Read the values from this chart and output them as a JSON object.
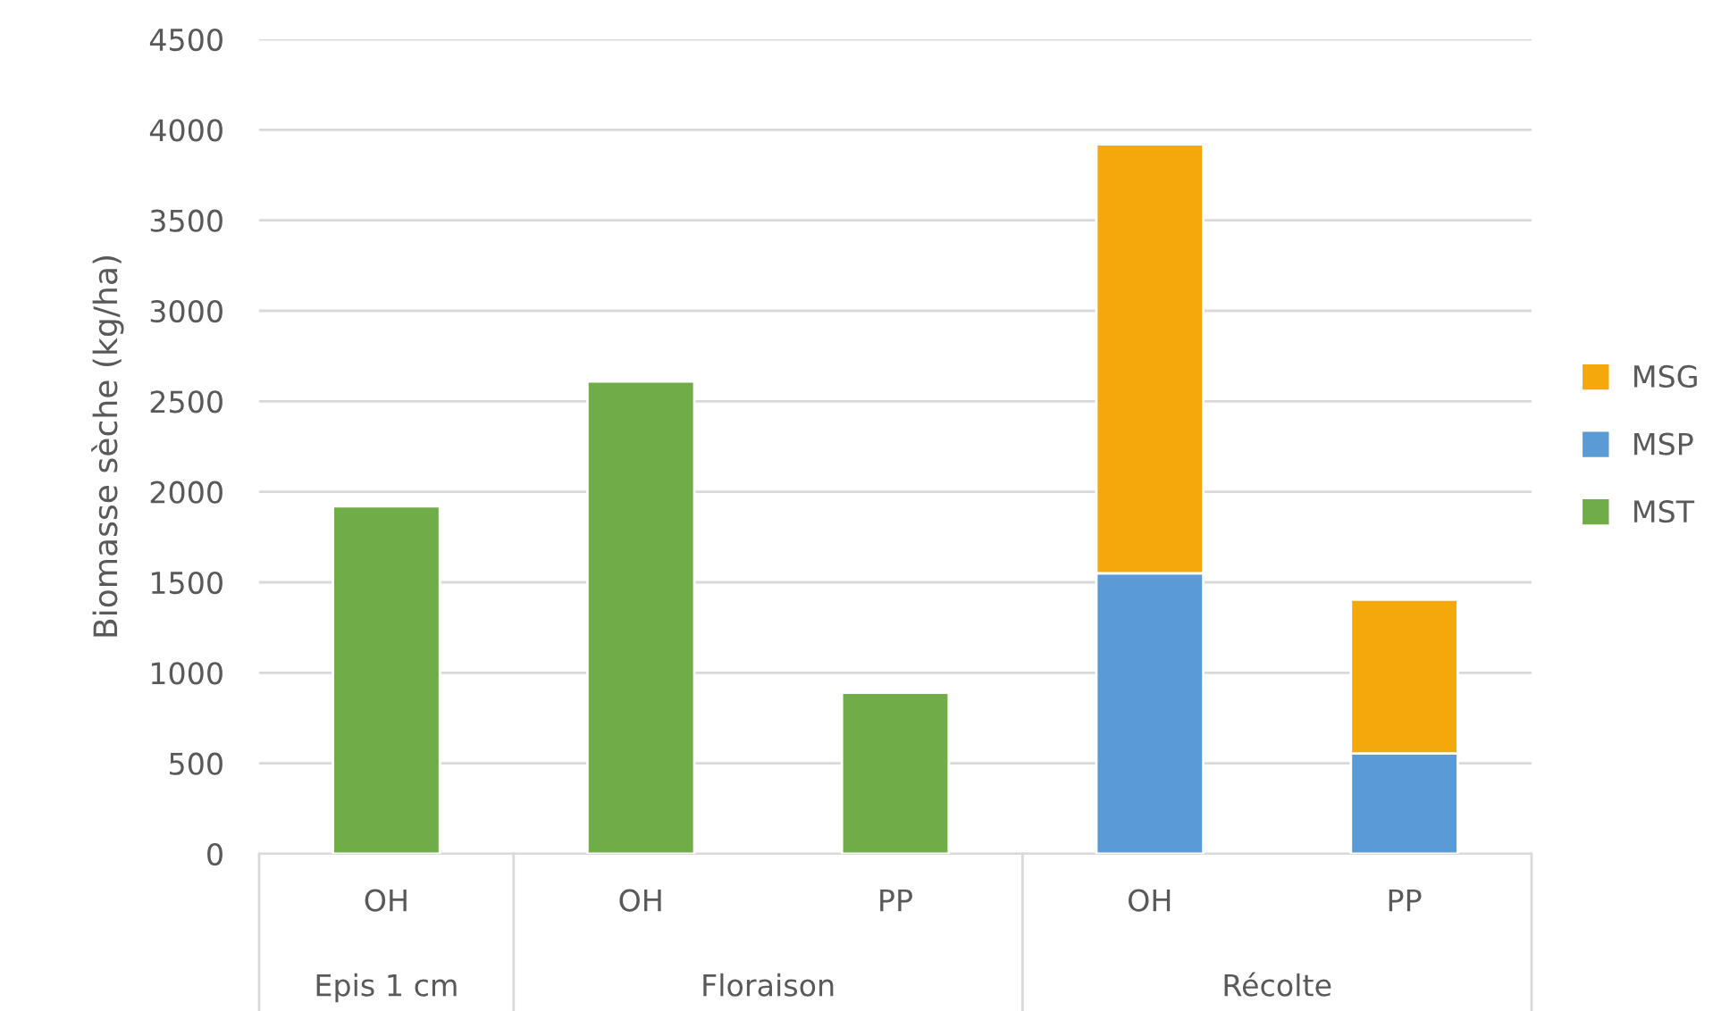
{
  "chart_data": {
    "type": "bar",
    "stacked": true,
    "ylabel": "Biomasse sèche (kg/ha)",
    "categories": [
      "OH",
      "OH",
      "PP",
      "OH",
      "PP"
    ],
    "series": [
      {
        "name": "MST",
        "color": "#70ad47",
        "values": [
          1920,
          2610,
          890,
          null,
          null
        ]
      },
      {
        "name": "MSP",
        "color": "#5b9bd5",
        "values": [
          null,
          null,
          null,
          1550,
          555
        ]
      },
      {
        "name": "MSG",
        "color": "#f5a80c",
        "values": [
          null,
          null,
          null,
          2370,
          850
        ]
      }
    ],
    "annotations": [
      "Epis 1 cm",
      "Floraison",
      "Récolte"
    ],
    "ylim": [
      0,
      4500
    ],
    "yticks": [
      0,
      500,
      1000,
      1500,
      2000,
      2500,
      3000,
      3500,
      4000,
      4500
    ],
    "grid": "y",
    "legend": "right"
  }
}
